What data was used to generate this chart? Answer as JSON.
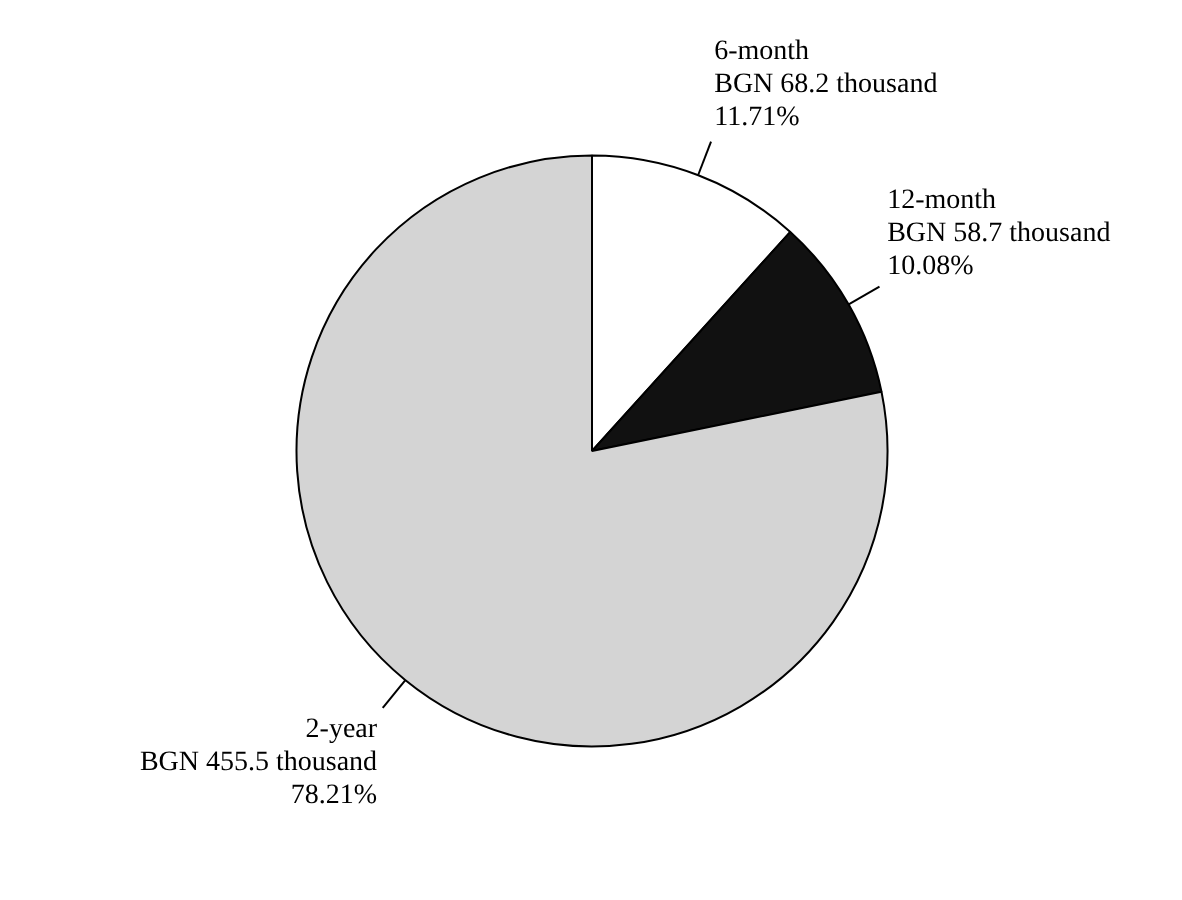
{
  "chart_data": {
    "type": "pie",
    "categories": [
      "6-month\nBGN 68.2 thousand",
      "12-month\nBGN 58.7 thousand",
      "2-year\nBGN 455.5 thousand"
    ],
    "values": [
      11.71,
      10.08,
      78.21
    ],
    "colors": [
      "#ffffff",
      "#111111",
      "#d4d4d4"
    ],
    "value_labels": [
      "11.71%",
      "10.08%",
      "78.21%"
    ]
  }
}
